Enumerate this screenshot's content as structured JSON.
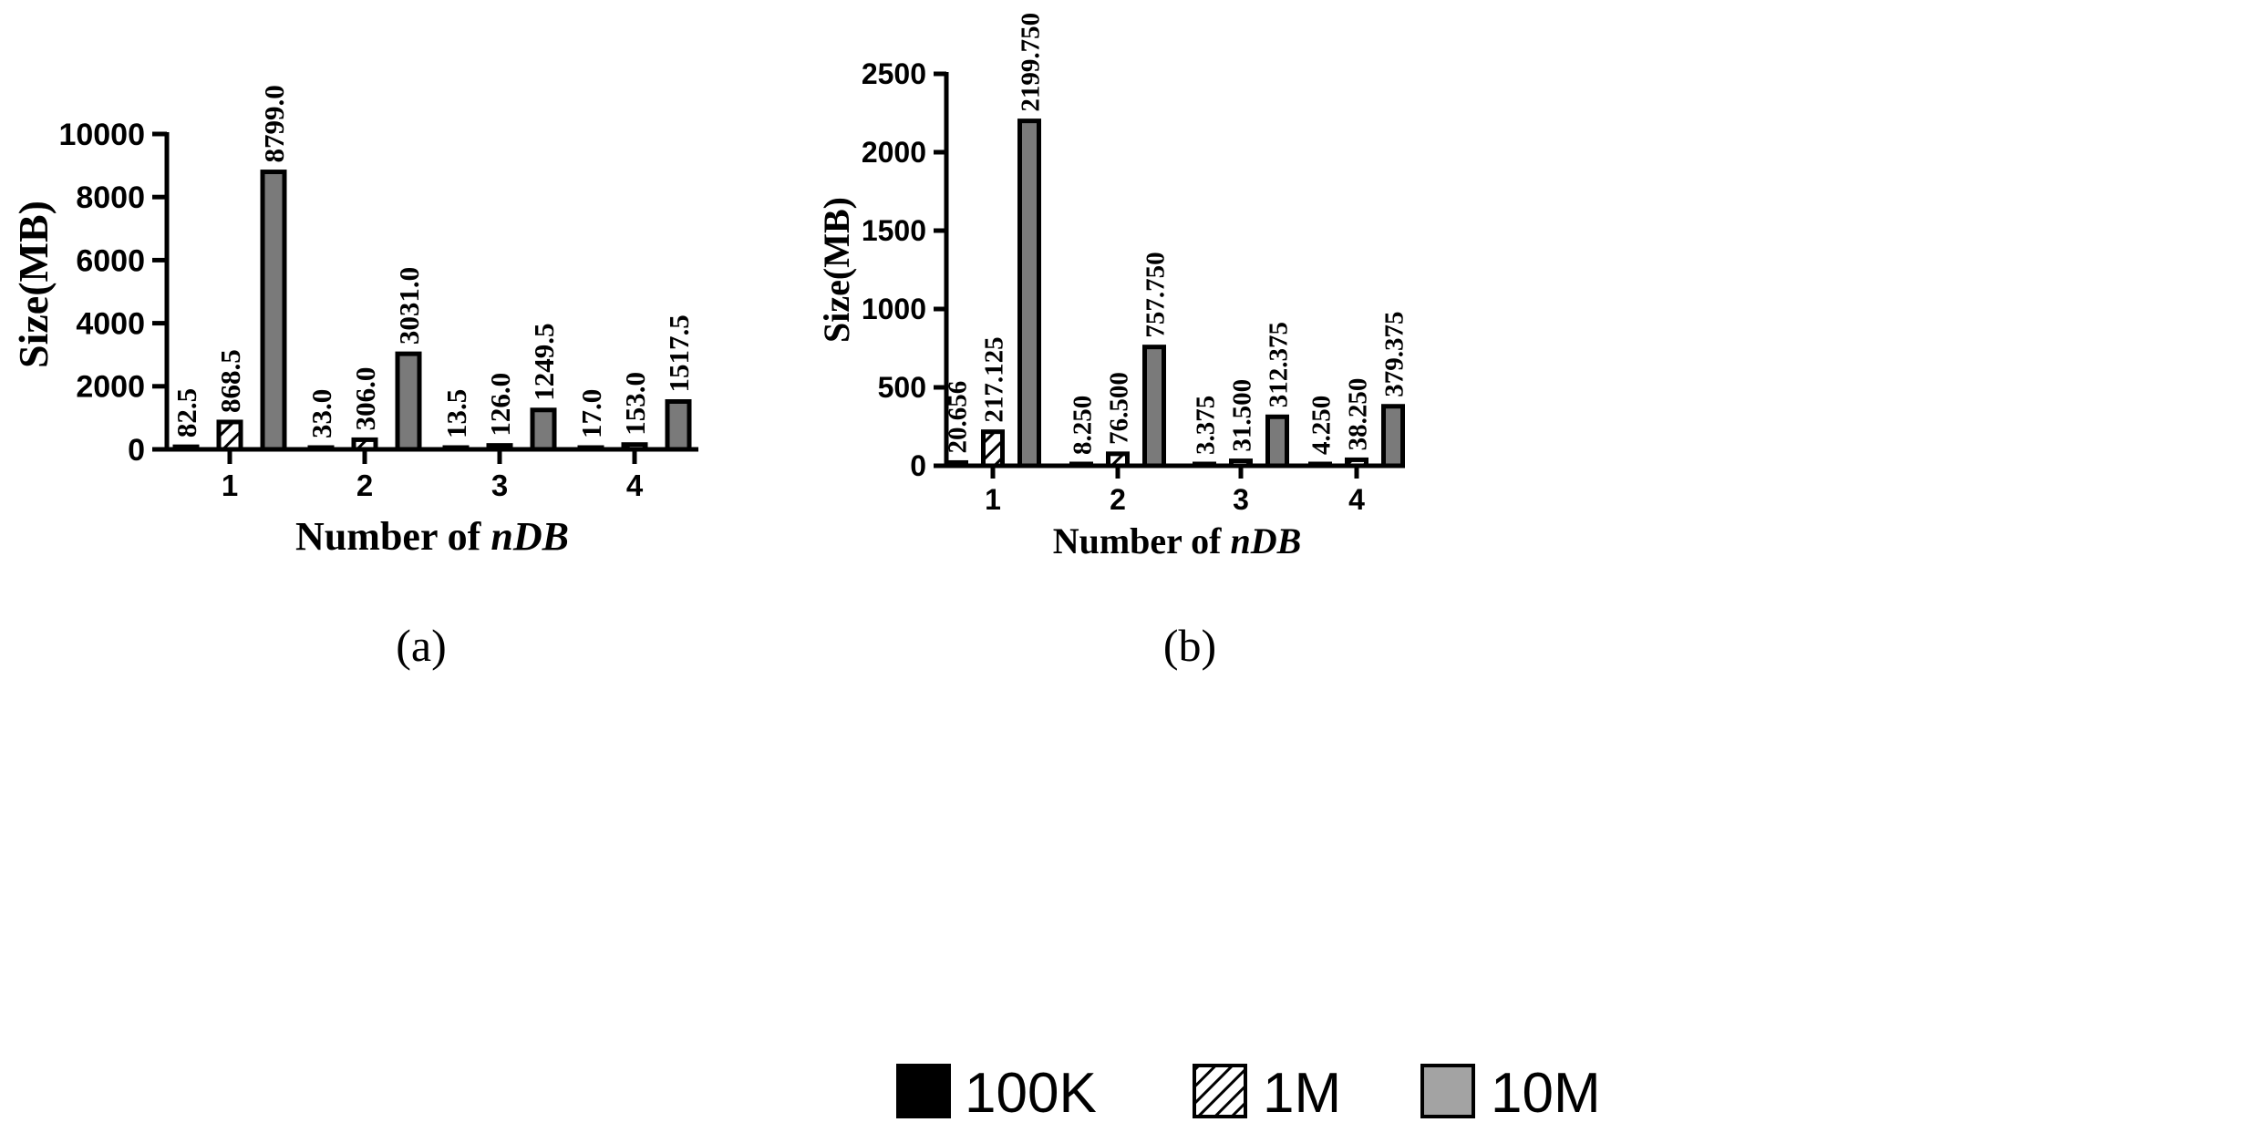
{
  "chart_data": [
    {
      "type": "bar",
      "panel": "(a)",
      "categories": [
        "1",
        "2",
        "3",
        "4"
      ],
      "series": [
        {
          "name": "100K",
          "values": [
            82.5,
            33.0,
            13.5,
            17.0
          ],
          "labels": [
            "82.5",
            "33.0",
            "13.5",
            "17.0"
          ]
        },
        {
          "name": "1M",
          "values": [
            868.5,
            306.0,
            126.0,
            153.0
          ],
          "labels": [
            "868.5",
            "306.0",
            "126.0",
            "153.0"
          ]
        },
        {
          "name": "10M",
          "values": [
            8799.0,
            3031.0,
            1249.5,
            1517.5
          ],
          "labels": [
            "8799.0",
            "3031.0",
            "1249.5",
            "1517.5"
          ]
        }
      ],
      "ylim": [
        0,
        10000
      ],
      "yticks": [
        0,
        2000,
        4000,
        6000,
        8000,
        10000
      ],
      "ylabel": "Size(MB)",
      "xlabel_prefix": "Number of ",
      "xlabel_italic": "nDB"
    },
    {
      "type": "bar",
      "panel": "(b)",
      "categories": [
        "1",
        "2",
        "3",
        "4"
      ],
      "series": [
        {
          "name": "100K",
          "values": [
            20.656,
            8.25,
            3.375,
            4.25
          ],
          "labels": [
            "20.656",
            "8.250",
            "3.375",
            "4.250"
          ]
        },
        {
          "name": "1M",
          "values": [
            217.125,
            76.5,
            31.5,
            38.25
          ],
          "labels": [
            "217.125",
            "76.500",
            "31.500",
            "38.250"
          ]
        },
        {
          "name": "10M",
          "values": [
            2199.75,
            757.75,
            312.375,
            379.375
          ],
          "labels": [
            "2199.750",
            "757.750",
            "312.375",
            "379.375"
          ]
        }
      ],
      "ylim": [
        0,
        2500
      ],
      "yticks": [
        0,
        500,
        1000,
        1500,
        2000,
        2500
      ],
      "ylabel": "Size(MB)",
      "xlabel_prefix": "Number of ",
      "xlabel_italic": "nDB"
    }
  ],
  "legend": {
    "items": [
      {
        "label": "100K",
        "style": "solid-black"
      },
      {
        "label": "1M",
        "style": "hatched"
      },
      {
        "label": "10M",
        "style": "solid-gray"
      }
    ]
  },
  "colors": {
    "series_100k": "#000000",
    "series_10m": "#7a7a7a",
    "legend_10m": "#a3a3a3",
    "axis": "#000000"
  }
}
